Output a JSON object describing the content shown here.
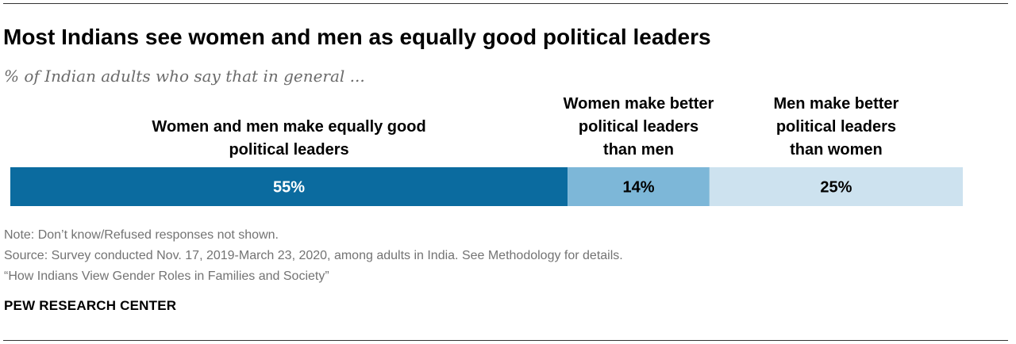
{
  "title": "Most Indians see women and men as equally good political leaders",
  "subtitle": "% of Indian adults who say that in general ...",
  "chart_data": {
    "type": "bar",
    "orientation": "horizontal-stacked",
    "categories": [
      [
        "Women and men make equally good",
        "political leaders"
      ],
      [
        "Women make better",
        "political leaders",
        "than men"
      ],
      [
        "Men make better",
        "political leaders",
        "than women"
      ]
    ],
    "values": [
      55,
      14,
      25
    ],
    "value_labels": [
      "55%",
      "14%",
      "25%"
    ],
    "colors": [
      "#0b6b9f",
      "#7db7d8",
      "#cde2ef"
    ],
    "label_colors": [
      "#ffffff",
      "#000000",
      "#000000"
    ],
    "unit": "%",
    "grid": false
  },
  "footer": {
    "note": "Note: Don’t know/Refused responses not shown.",
    "source": "Source: Survey conducted Nov. 17, 2019-March 23, 2020, among adults in India. See Methodology for details.",
    "report": "“How Indians View Gender Roles in Families and Society”",
    "brand": "PEW RESEARCH CENTER"
  }
}
